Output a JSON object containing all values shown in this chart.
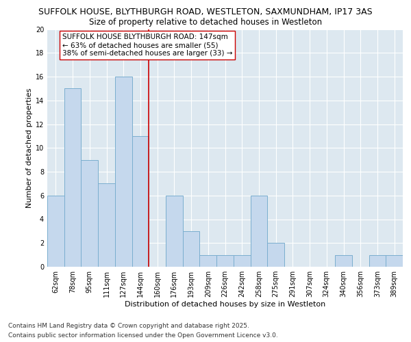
{
  "title1": "SUFFOLK HOUSE, BLYTHBURGH ROAD, WESTLETON, SAXMUNDHAM, IP17 3AS",
  "title2": "Size of property relative to detached houses in Westleton",
  "xlabel": "Distribution of detached houses by size in Westleton",
  "ylabel": "Number of detached properties",
  "categories": [
    "62sqm",
    "78sqm",
    "95sqm",
    "111sqm",
    "127sqm",
    "144sqm",
    "160sqm",
    "176sqm",
    "193sqm",
    "209sqm",
    "226sqm",
    "242sqm",
    "258sqm",
    "275sqm",
    "291sqm",
    "307sqm",
    "324sqm",
    "340sqm",
    "356sqm",
    "373sqm",
    "389sqm"
  ],
  "values": [
    6,
    15,
    9,
    7,
    16,
    11,
    0,
    6,
    3,
    1,
    1,
    1,
    6,
    2,
    0,
    0,
    0,
    1,
    0,
    1,
    1
  ],
  "bar_color": "#c5d8ed",
  "bar_edge_color": "#7aaecf",
  "vline_x": 5.5,
  "vline_color": "#cc0000",
  "annotation_text": "SUFFOLK HOUSE BLYTHBURGH ROAD: 147sqm\n← 63% of detached houses are smaller (55)\n38% of semi-detached houses are larger (33) →",
  "annotation_box_color": "#ffffff",
  "annotation_box_edge": "#cc0000",
  "ylim": [
    0,
    20
  ],
  "yticks": [
    0,
    2,
    4,
    6,
    8,
    10,
    12,
    14,
    16,
    18,
    20
  ],
  "fig_bg_color": "#ffffff",
  "plot_bg_color": "#dde8f0",
  "footer1": "Contains HM Land Registry data © Crown copyright and database right 2025.",
  "footer2": "Contains public sector information licensed under the Open Government Licence v3.0.",
  "title_fontsize": 9,
  "subtitle_fontsize": 8.5,
  "axis_label_fontsize": 8,
  "tick_fontsize": 7,
  "annotation_fontsize": 7.5,
  "footer_fontsize": 6.5
}
